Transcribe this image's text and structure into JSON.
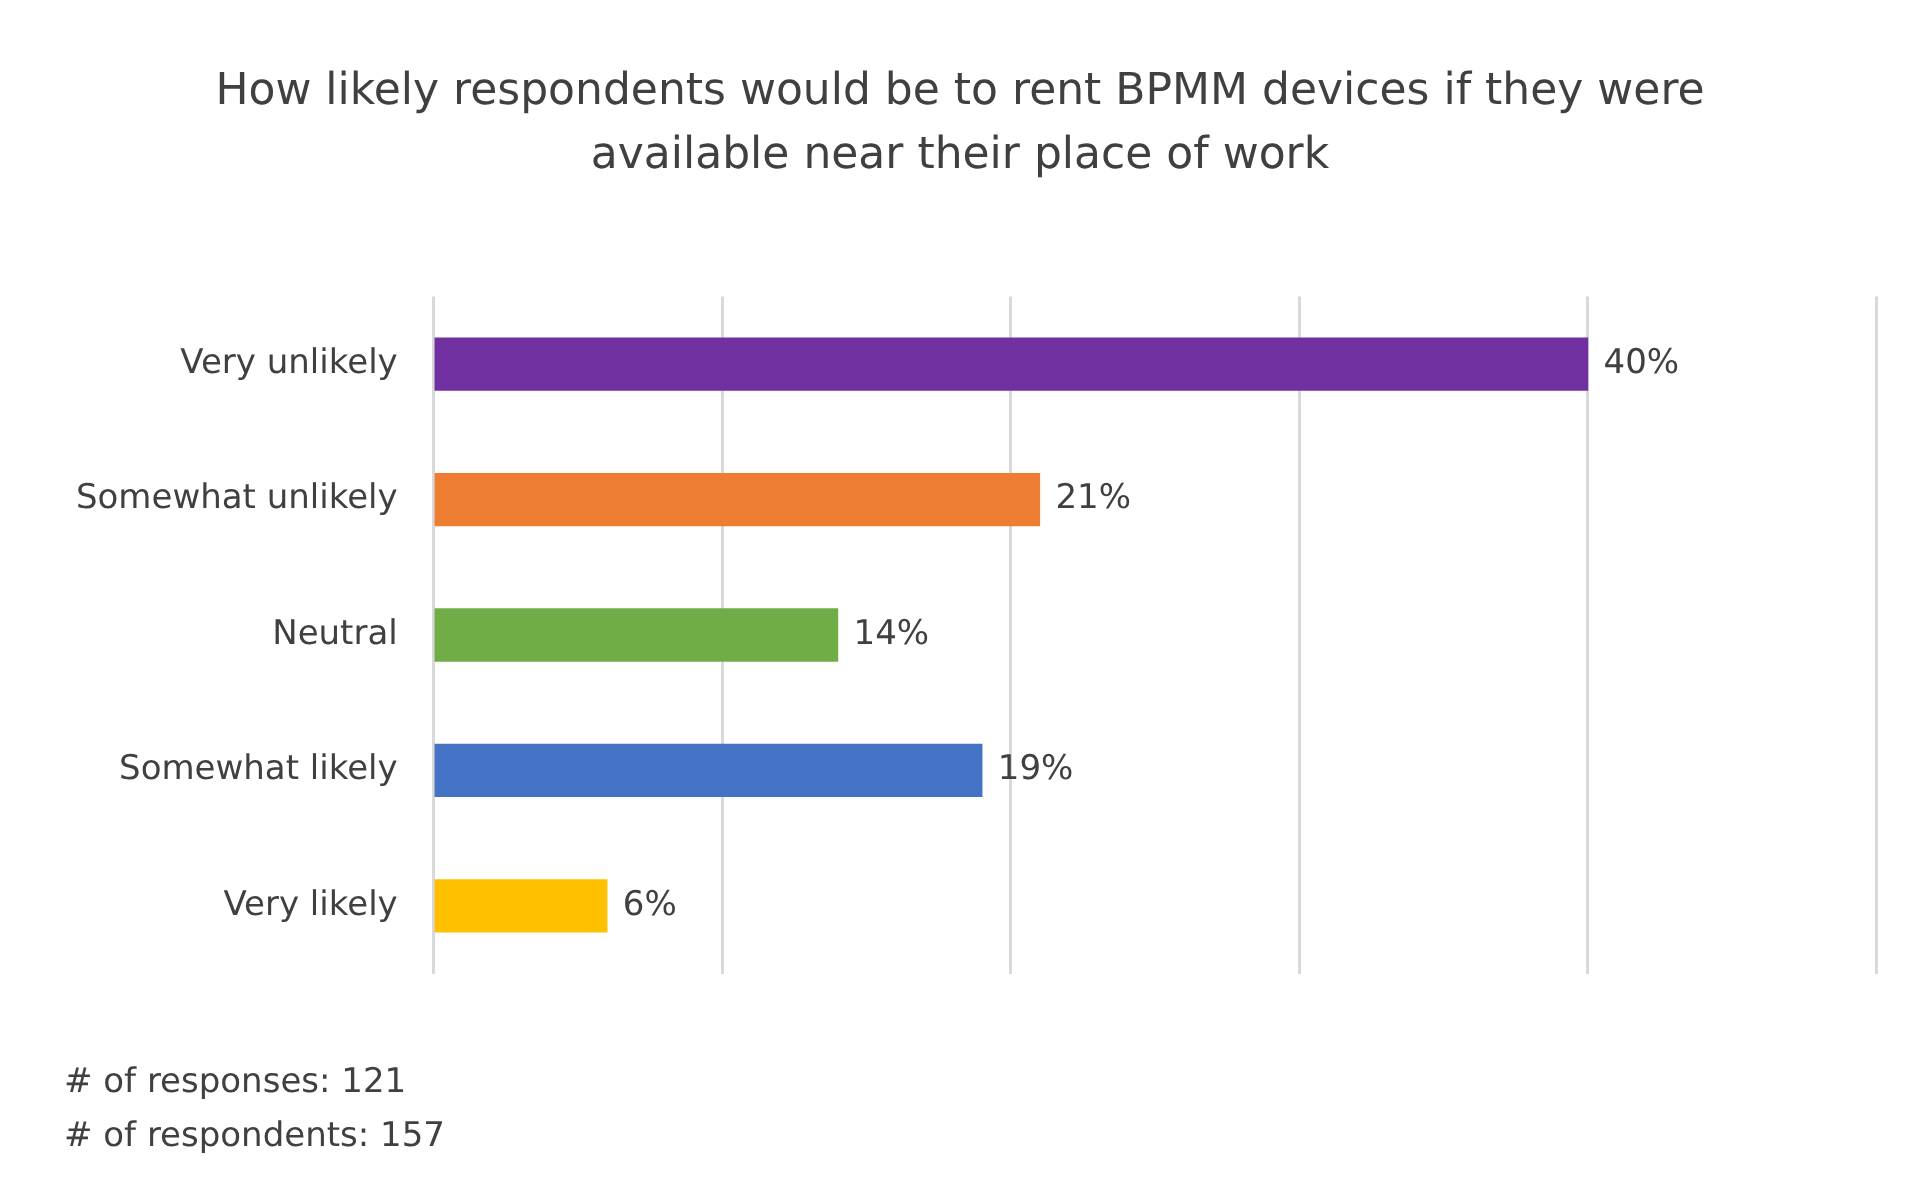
{
  "chart_data": {
    "type": "bar",
    "orientation": "horizontal",
    "title": "How likely respondents would be to rent BPMM devices if they were available near their place of work",
    "categories": [
      "Very unlikely",
      "Somewhat unlikely",
      "Neutral",
      "Somewhat likely",
      "Very likely"
    ],
    "values": [
      40,
      21,
      14,
      19,
      6
    ],
    "colors": [
      "#7030a0",
      "#ed7d31",
      "#70ad47",
      "#4472c4",
      "#ffc000"
    ],
    "value_labels": [
      "40%",
      "21%",
      "14%",
      "19%",
      "6%"
    ],
    "xlim": [
      0,
      50
    ],
    "xticks": [
      {
        "value": 0,
        "label": null
      },
      {
        "value": 10,
        "label": null
      },
      {
        "value": 20,
        "label": null
      },
      {
        "value": 30,
        "label": null
      },
      {
        "value": 40,
        "label": null
      },
      {
        "value": 50,
        "label": null
      }
    ],
    "tick_labels": "y",
    "grid": "x",
    "legend": false,
    "annotations": [
      "# of responses: 121",
      "# of respondents: 157"
    ]
  }
}
